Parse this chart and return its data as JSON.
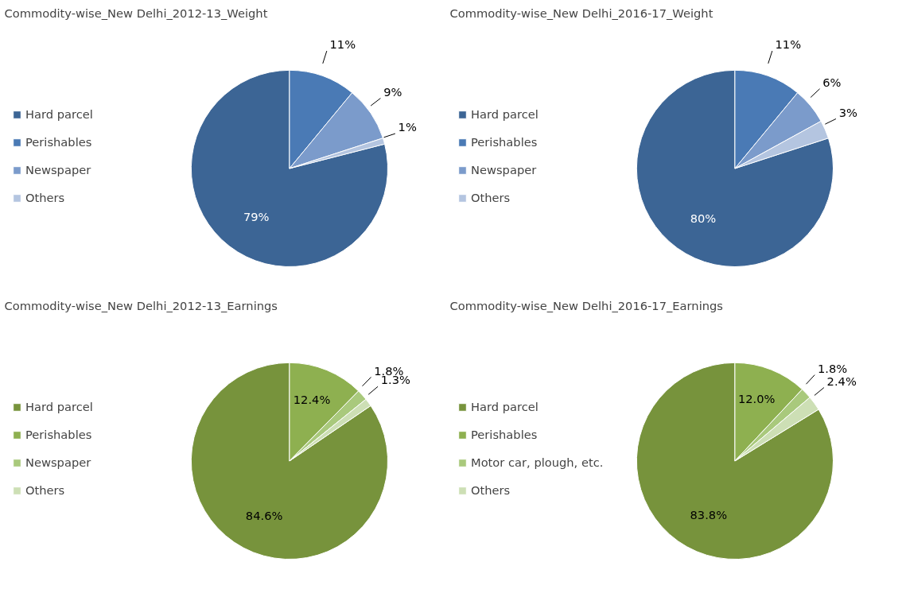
{
  "chart_data": [
    {
      "type": "pie",
      "title": "Commodity-wise_New Delhi_2012-13_Weight",
      "categories": [
        "Hard parcel",
        "Perishables",
        "Newspaper",
        "Others"
      ],
      "values": [
        79,
        11,
        9,
        1
      ],
      "value_labels": [
        "79%",
        "11%",
        "9%",
        "1%"
      ],
      "colors": [
        "#3c6595",
        "#4a7ab5",
        "#7b9bcb",
        "#b4c5e0"
      ],
      "legend": "left"
    },
    {
      "type": "pie",
      "title": "Commodity-wise_New Delhi_2016-17_Weight",
      "categories": [
        "Hard parcel",
        "Perishables",
        "Newspaper",
        "Others"
      ],
      "values": [
        80,
        11,
        6,
        3
      ],
      "value_labels": [
        "80%",
        "11%",
        "6%",
        "3%"
      ],
      "colors": [
        "#3c6595",
        "#4a7ab5",
        "#7b9bcb",
        "#b4c5e0"
      ],
      "legend": "left"
    },
    {
      "type": "pie",
      "title": "Commodity-wise_New Delhi_2012-13_Earnings",
      "categories": [
        "Hard parcel",
        "Perishables",
        "Newspaper",
        "Others"
      ],
      "values": [
        84.6,
        12.4,
        1.8,
        1.3
      ],
      "value_labels": [
        "84.6%",
        "12.4%",
        "1.8%",
        "1.3%"
      ],
      "colors": [
        "#77933c",
        "#8eb050",
        "#a9c97c",
        "#cddfb5"
      ],
      "legend": "left"
    },
    {
      "type": "pie",
      "title": "Commodity-wise_New Delhi_2016-17_Earnings",
      "categories": [
        "Hard parcel",
        "Perishables",
        "Motor car, plough, etc.",
        "Others"
      ],
      "values": [
        83.8,
        12.0,
        1.8,
        2.4
      ],
      "value_labels": [
        "83.8%",
        "12.0%",
        "1.8%",
        "2.4%"
      ],
      "colors": [
        "#77933c",
        "#8eb050",
        "#a9c97c",
        "#cddfb5"
      ],
      "legend": "left"
    }
  ]
}
